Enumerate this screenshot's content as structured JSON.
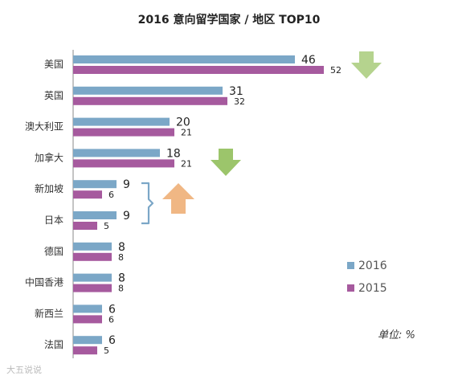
{
  "chart_data": {
    "type": "bar",
    "orientation": "horizontal",
    "title": "2016 意向留学国家 / 地区 TOP10",
    "categories": [
      "美国",
      "英国",
      "澳大利亚",
      "加拿大",
      "新加坡",
      "日本",
      "德国",
      "中国香港",
      "新西兰",
      "法国"
    ],
    "series": [
      {
        "name": "2016",
        "color": "#7BA7C7",
        "values": [
          46,
          31,
          20,
          18,
          9,
          9,
          8,
          8,
          6,
          6
        ]
      },
      {
        "name": "2015",
        "color": "#A65A9E",
        "values": [
          52,
          32,
          21,
          21,
          6,
          5,
          8,
          8,
          6,
          5
        ]
      }
    ],
    "xlim": [
      0,
      60
    ],
    "legend_position": "right",
    "unit_label": "单位: %",
    "annotations": [
      {
        "type": "arrow",
        "direction": "down",
        "color": "#B5D38E",
        "near": "美国"
      },
      {
        "type": "arrow",
        "direction": "down",
        "color": "#9CC56B",
        "near": "加拿大"
      },
      {
        "type": "arrow",
        "direction": "up",
        "color": "#F0B784",
        "near": "新加坡"
      }
    ],
    "grid": false
  },
  "watermark": "大五说说"
}
